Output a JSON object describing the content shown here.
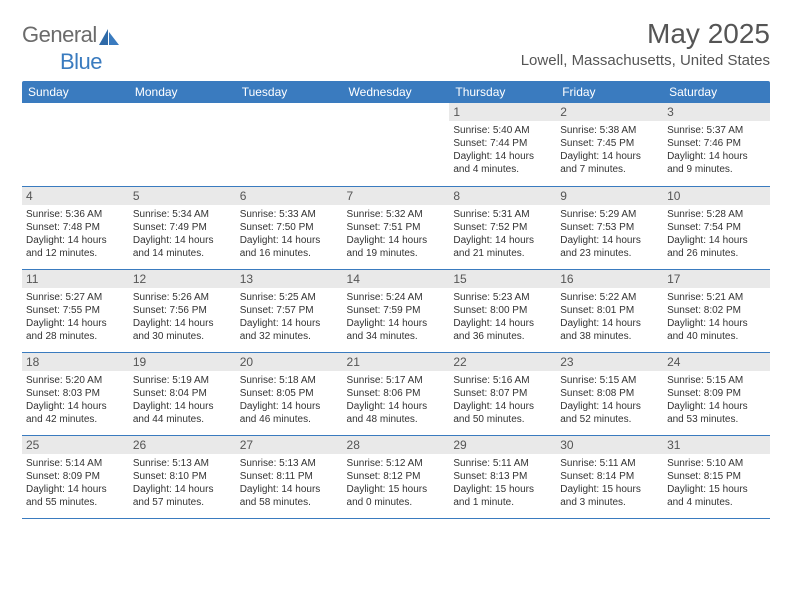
{
  "brand": {
    "word1": "General",
    "word2": "Blue"
  },
  "title": "May 2025",
  "location": "Lowell, Massachusetts, United States",
  "colors": {
    "header_bg": "#3a7bbf",
    "header_text": "#ffffff",
    "daynum_bg": "#e9e9e9",
    "border": "#3a7bbf",
    "text": "#333333",
    "title_text": "#555555"
  },
  "dayNames": [
    "Sunday",
    "Monday",
    "Tuesday",
    "Wednesday",
    "Thursday",
    "Friday",
    "Saturday"
  ],
  "weeks": [
    [
      null,
      null,
      null,
      null,
      {
        "n": "1",
        "sr": "Sunrise: 5:40 AM",
        "ss": "Sunset: 7:44 PM",
        "d1": "Daylight: 14 hours",
        "d2": "and 4 minutes."
      },
      {
        "n": "2",
        "sr": "Sunrise: 5:38 AM",
        "ss": "Sunset: 7:45 PM",
        "d1": "Daylight: 14 hours",
        "d2": "and 7 minutes."
      },
      {
        "n": "3",
        "sr": "Sunrise: 5:37 AM",
        "ss": "Sunset: 7:46 PM",
        "d1": "Daylight: 14 hours",
        "d2": "and 9 minutes."
      }
    ],
    [
      {
        "n": "4",
        "sr": "Sunrise: 5:36 AM",
        "ss": "Sunset: 7:48 PM",
        "d1": "Daylight: 14 hours",
        "d2": "and 12 minutes."
      },
      {
        "n": "5",
        "sr": "Sunrise: 5:34 AM",
        "ss": "Sunset: 7:49 PM",
        "d1": "Daylight: 14 hours",
        "d2": "and 14 minutes."
      },
      {
        "n": "6",
        "sr": "Sunrise: 5:33 AM",
        "ss": "Sunset: 7:50 PM",
        "d1": "Daylight: 14 hours",
        "d2": "and 16 minutes."
      },
      {
        "n": "7",
        "sr": "Sunrise: 5:32 AM",
        "ss": "Sunset: 7:51 PM",
        "d1": "Daylight: 14 hours",
        "d2": "and 19 minutes."
      },
      {
        "n": "8",
        "sr": "Sunrise: 5:31 AM",
        "ss": "Sunset: 7:52 PM",
        "d1": "Daylight: 14 hours",
        "d2": "and 21 minutes."
      },
      {
        "n": "9",
        "sr": "Sunrise: 5:29 AM",
        "ss": "Sunset: 7:53 PM",
        "d1": "Daylight: 14 hours",
        "d2": "and 23 minutes."
      },
      {
        "n": "10",
        "sr": "Sunrise: 5:28 AM",
        "ss": "Sunset: 7:54 PM",
        "d1": "Daylight: 14 hours",
        "d2": "and 26 minutes."
      }
    ],
    [
      {
        "n": "11",
        "sr": "Sunrise: 5:27 AM",
        "ss": "Sunset: 7:55 PM",
        "d1": "Daylight: 14 hours",
        "d2": "and 28 minutes."
      },
      {
        "n": "12",
        "sr": "Sunrise: 5:26 AM",
        "ss": "Sunset: 7:56 PM",
        "d1": "Daylight: 14 hours",
        "d2": "and 30 minutes."
      },
      {
        "n": "13",
        "sr": "Sunrise: 5:25 AM",
        "ss": "Sunset: 7:57 PM",
        "d1": "Daylight: 14 hours",
        "d2": "and 32 minutes."
      },
      {
        "n": "14",
        "sr": "Sunrise: 5:24 AM",
        "ss": "Sunset: 7:59 PM",
        "d1": "Daylight: 14 hours",
        "d2": "and 34 minutes."
      },
      {
        "n": "15",
        "sr": "Sunrise: 5:23 AM",
        "ss": "Sunset: 8:00 PM",
        "d1": "Daylight: 14 hours",
        "d2": "and 36 minutes."
      },
      {
        "n": "16",
        "sr": "Sunrise: 5:22 AM",
        "ss": "Sunset: 8:01 PM",
        "d1": "Daylight: 14 hours",
        "d2": "and 38 minutes."
      },
      {
        "n": "17",
        "sr": "Sunrise: 5:21 AM",
        "ss": "Sunset: 8:02 PM",
        "d1": "Daylight: 14 hours",
        "d2": "and 40 minutes."
      }
    ],
    [
      {
        "n": "18",
        "sr": "Sunrise: 5:20 AM",
        "ss": "Sunset: 8:03 PM",
        "d1": "Daylight: 14 hours",
        "d2": "and 42 minutes."
      },
      {
        "n": "19",
        "sr": "Sunrise: 5:19 AM",
        "ss": "Sunset: 8:04 PM",
        "d1": "Daylight: 14 hours",
        "d2": "and 44 minutes."
      },
      {
        "n": "20",
        "sr": "Sunrise: 5:18 AM",
        "ss": "Sunset: 8:05 PM",
        "d1": "Daylight: 14 hours",
        "d2": "and 46 minutes."
      },
      {
        "n": "21",
        "sr": "Sunrise: 5:17 AM",
        "ss": "Sunset: 8:06 PM",
        "d1": "Daylight: 14 hours",
        "d2": "and 48 minutes."
      },
      {
        "n": "22",
        "sr": "Sunrise: 5:16 AM",
        "ss": "Sunset: 8:07 PM",
        "d1": "Daylight: 14 hours",
        "d2": "and 50 minutes."
      },
      {
        "n": "23",
        "sr": "Sunrise: 5:15 AM",
        "ss": "Sunset: 8:08 PM",
        "d1": "Daylight: 14 hours",
        "d2": "and 52 minutes."
      },
      {
        "n": "24",
        "sr": "Sunrise: 5:15 AM",
        "ss": "Sunset: 8:09 PM",
        "d1": "Daylight: 14 hours",
        "d2": "and 53 minutes."
      }
    ],
    [
      {
        "n": "25",
        "sr": "Sunrise: 5:14 AM",
        "ss": "Sunset: 8:09 PM",
        "d1": "Daylight: 14 hours",
        "d2": "and 55 minutes."
      },
      {
        "n": "26",
        "sr": "Sunrise: 5:13 AM",
        "ss": "Sunset: 8:10 PM",
        "d1": "Daylight: 14 hours",
        "d2": "and 57 minutes."
      },
      {
        "n": "27",
        "sr": "Sunrise: 5:13 AM",
        "ss": "Sunset: 8:11 PM",
        "d1": "Daylight: 14 hours",
        "d2": "and 58 minutes."
      },
      {
        "n": "28",
        "sr": "Sunrise: 5:12 AM",
        "ss": "Sunset: 8:12 PM",
        "d1": "Daylight: 15 hours",
        "d2": "and 0 minutes."
      },
      {
        "n": "29",
        "sr": "Sunrise: 5:11 AM",
        "ss": "Sunset: 8:13 PM",
        "d1": "Daylight: 15 hours",
        "d2": "and 1 minute."
      },
      {
        "n": "30",
        "sr": "Sunrise: 5:11 AM",
        "ss": "Sunset: 8:14 PM",
        "d1": "Daylight: 15 hours",
        "d2": "and 3 minutes."
      },
      {
        "n": "31",
        "sr": "Sunrise: 5:10 AM",
        "ss": "Sunset: 8:15 PM",
        "d1": "Daylight: 15 hours",
        "d2": "and 4 minutes."
      }
    ]
  ]
}
